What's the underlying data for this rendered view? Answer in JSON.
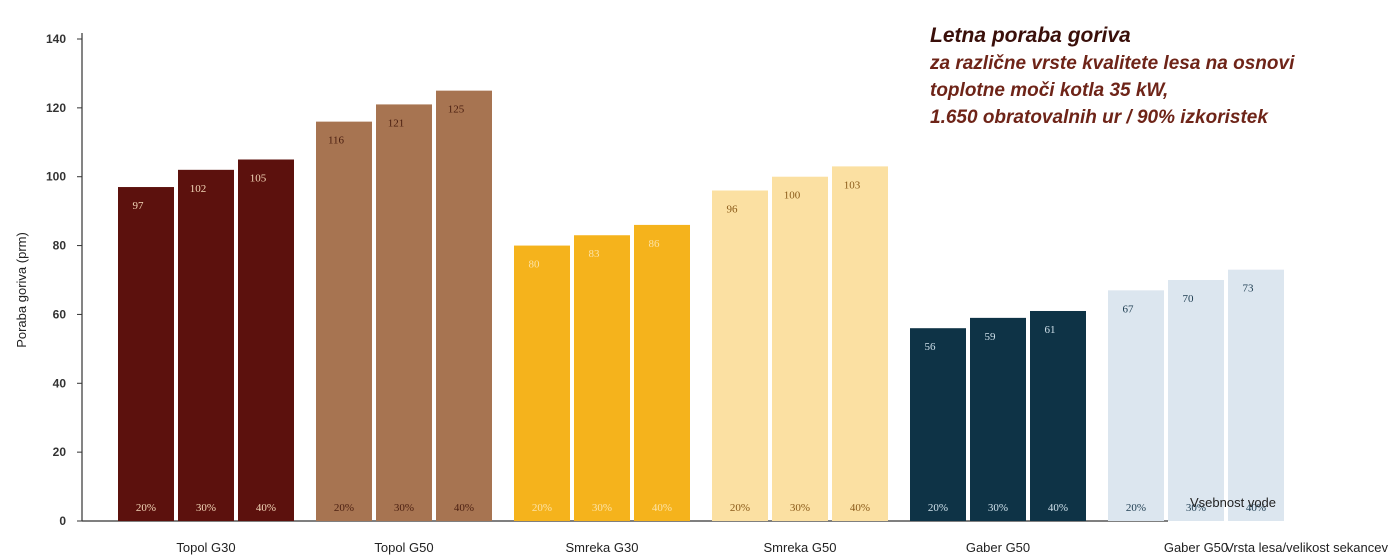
{
  "chart_data": {
    "type": "bar",
    "title": "Letna poraba goriva",
    "subtitle": [
      "za različne vrste kvalitete lesa na osnovi",
      "toplotne moči kotla 35 kW,",
      "1.650 obratovalnih ur / 90% izkoristek"
    ],
    "ylabel": "Poraba goriva (prm)",
    "xlabel": "Vrsta lesa/velikost sekancev",
    "series_label": "Vsebnost vode",
    "ylim": [
      0,
      140
    ],
    "yticks": [
      "0",
      "20",
      "40",
      "60",
      "80",
      "100",
      "120",
      "140"
    ],
    "groups": [
      {
        "name": "Topol G30",
        "color": "#5c110d",
        "bar_label_color": "#f3d7b8",
        "values": [
          97,
          102,
          105
        ],
        "value_labels": [
          "97",
          "102",
          "105"
        ],
        "water_labels": [
          "20%",
          "30%",
          "40%"
        ]
      },
      {
        "name": "Topol G50",
        "color": "#a77451",
        "bar_label_color": "#4a1e10",
        "values": [
          116,
          121,
          125
        ],
        "value_labels": [
          "116",
          "121",
          "125"
        ],
        "water_labels": [
          "20%",
          "30%",
          "40%"
        ]
      },
      {
        "name": "Smreka G30",
        "color": "#f5b31c",
        "bar_label_color": "#fce3a6",
        "values": [
          80,
          83,
          86
        ],
        "value_labels": [
          "80",
          "83",
          "86"
        ],
        "water_labels": [
          "20%",
          "30%",
          "40%"
        ]
      },
      {
        "name": "Smreka G50",
        "color": "#fbe0a2",
        "bar_label_color": "#8a5a18",
        "values": [
          96,
          100,
          103
        ],
        "value_labels": [
          "96",
          "100",
          "103"
        ],
        "water_labels": [
          "20%",
          "30%",
          "40%"
        ]
      },
      {
        "name": "Gaber G50",
        "color": "#0e3346",
        "bar_label_color": "#cfe0ea",
        "values": [
          56,
          59,
          61
        ],
        "value_labels": [
          "56",
          "59",
          "61"
        ],
        "water_labels": [
          "20%",
          "30%",
          "40%"
        ]
      },
      {
        "name": "Gaber G50",
        "color": "#dce6ef",
        "bar_label_color": "#1d3c50",
        "values": [
          67,
          70,
          73
        ],
        "value_labels": [
          "67",
          "70",
          "73"
        ],
        "water_labels": [
          "20%",
          "30%",
          "40%"
        ]
      }
    ]
  }
}
